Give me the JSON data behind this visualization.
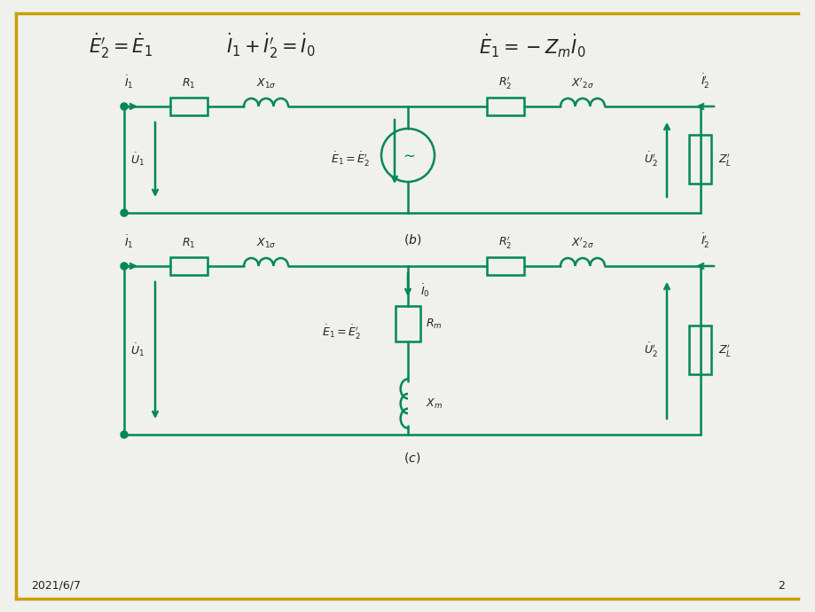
{
  "bg_color": "#f0f0ec",
  "circuit_color": "#008855",
  "text_color": "#222222",
  "border_color": "#c8a000",
  "footer_date": "2021/6/7",
  "footer_page": "2"
}
